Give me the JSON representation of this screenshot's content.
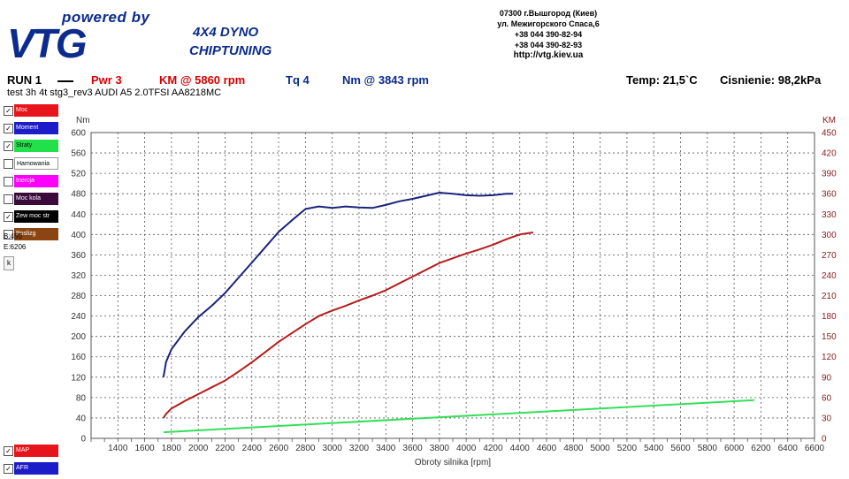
{
  "logo": {
    "powered_by": "powered by",
    "brand": "VTG",
    "line1": "4X4 DYNO",
    "line2": "CHIPTUNING"
  },
  "contact": {
    "lines": [
      "07300 г.Вышгород (Киев)",
      "ул. Межигорского Спаса,6",
      "+38 044 390-82-94",
      "+38 044 390-82-93"
    ],
    "url": "http://vtg.kiev.ua"
  },
  "run": {
    "label": "RUN 1",
    "pwr_label": "Pwr",
    "pwr_value": "3",
    "pwr_unit_rpm": "KM @ 5860 rpm",
    "tq_label": "Tq 4",
    "tq_unit_rpm": "Nm @ 3843 rpm",
    "temp": "Temp: 21,5`C",
    "pressure": "Cisnienie: 98,2kPa"
  },
  "test_line": "test  3h 4t stg3_rev3 AUDI A5 2.0TFSI AA8218MC",
  "legend": {
    "items": [
      {
        "label": "Moc",
        "checked": true,
        "color": "#e8141b",
        "text_color": "#ffffff"
      },
      {
        "label": "Moment",
        "checked": true,
        "color": "#1c1cc8",
        "text_color": "#ffffff"
      },
      {
        "label": "Straty",
        "checked": true,
        "color": "#22e04a",
        "text_color": "#000000"
      },
      {
        "label": "Hamowania",
        "checked": false,
        "color": "#ffffff",
        "text_color": "#000000"
      },
      {
        "label": "Inercja",
        "checked": false,
        "color": "#ff00ff",
        "text_color": "#ffffff"
      },
      {
        "label": "Moc kola",
        "checked": false,
        "color": "#3a0a3a",
        "text_color": "#ffffff"
      },
      {
        "label": "Zew moc str",
        "checked": true,
        "color": "#000000",
        "text_color": "#ffffff"
      },
      {
        "label": "Poslizg",
        "checked": false,
        "color": "#8b4513",
        "text_color": "#ffffff"
      }
    ],
    "b_value": "B:450",
    "e_value": "E:6206",
    "k_button": "k",
    "bottom_items": [
      {
        "label": "MAP",
        "checked": true,
        "color": "#e8141b",
        "text_color": "#ffffff"
      },
      {
        "label": "AFR",
        "checked": true,
        "color": "#1c1cc8",
        "text_color": "#ffffff"
      }
    ]
  },
  "chart_data": {
    "type": "line",
    "xlabel": "Obroty silnika [rpm]",
    "ylabel_left": "Nm",
    "ylabel_right": "KM",
    "xlim": [
      1200,
      6600
    ],
    "ylim_left": [
      0,
      600
    ],
    "ylim_right": [
      0,
      450
    ],
    "x_ticks": [
      1400,
      1600,
      1800,
      2000,
      2200,
      2400,
      2600,
      2800,
      3000,
      3200,
      3400,
      3600,
      3800,
      4000,
      4200,
      4400,
      4600,
      4800,
      5000,
      5200,
      5400,
      5600,
      5800,
      6000,
      6200,
      6400,
      6600
    ],
    "y_ticks_left": [
      0,
      40,
      80,
      120,
      160,
      200,
      240,
      280,
      320,
      360,
      400,
      440,
      480,
      520,
      560,
      600
    ],
    "y_ticks_right": [
      0,
      30,
      60,
      90,
      120,
      150,
      180,
      210,
      240,
      270,
      300,
      330,
      360,
      390,
      420,
      450
    ],
    "grid": true,
    "series": [
      {
        "axis": "left",
        "color": "#1a237e",
        "x": [
          1740,
          1760,
          1800,
          1900,
          2000,
          2100,
          2200,
          2300,
          2400,
          2500,
          2600,
          2700,
          2800,
          2900,
          3000,
          3100,
          3200,
          3300,
          3400,
          3500,
          3600,
          3700,
          3800,
          3900,
          4000,
          4100,
          4200,
          4300,
          4350
        ],
        "y": [
          120,
          150,
          175,
          210,
          238,
          260,
          285,
          315,
          345,
          375,
          405,
          428,
          450,
          455,
          452,
          455,
          453,
          452,
          458,
          465,
          470,
          476,
          482,
          480,
          477,
          476,
          477,
          480,
          480
        ]
      },
      {
        "axis": "right",
        "color": "#b71c1c",
        "x": [
          1740,
          1760,
          1800,
          1900,
          2000,
          2100,
          2200,
          2300,
          2400,
          2500,
          2600,
          2700,
          2800,
          2900,
          3000,
          3100,
          3200,
          3300,
          3400,
          3500,
          3600,
          3700,
          3800,
          3900,
          4000,
          4100,
          4200,
          4300,
          4400,
          4500
        ],
        "y": [
          30,
          36,
          44,
          55,
          65,
          75,
          85,
          98,
          112,
          127,
          142,
          155,
          168,
          180,
          188,
          195,
          203,
          210,
          218,
          228,
          238,
          248,
          258,
          265,
          272,
          278,
          285,
          293,
          300,
          303
        ]
      },
      {
        "axis": "left",
        "color": "#33e05a",
        "x": [
          1740,
          6150
        ],
        "y": [
          12,
          75
        ]
      }
    ]
  }
}
